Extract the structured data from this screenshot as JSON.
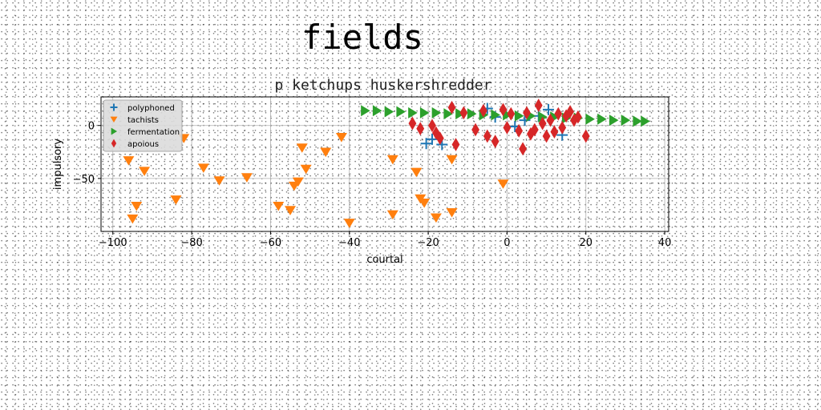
{
  "suptitle": "fields",
  "chart_data": {
    "type": "scatter",
    "title": "p ketchups huskershredder",
    "xlabel": "courtal",
    "ylabel": "impulsory",
    "xlim": [
      -103,
      41
    ],
    "ylim": [
      -100,
      27
    ],
    "xticks": [
      -100,
      -80,
      -60,
      -40,
      -20,
      0,
      20,
      40
    ],
    "yticks": [
      0,
      -50
    ],
    "grid": true,
    "legend_position": "upper-left",
    "series": [
      {
        "name": "polyphoned",
        "marker": "plus",
        "color": "#1f77b4",
        "x": [
          -20.5,
          -19,
          -16.5,
          -5,
          -3,
          2,
          4.5,
          8,
          10.5,
          14
        ],
        "y": [
          -17,
          -13,
          -18,
          16,
          8,
          -1,
          5,
          9,
          15,
          -9
        ]
      },
      {
        "name": "tachists",
        "marker": "triangle-down",
        "color": "#ff7f0e",
        "x": [
          -96,
          -95,
          -94,
          -92,
          -84,
          -82,
          -77,
          -73,
          -66,
          -58,
          -55,
          -54,
          -53,
          -52,
          -51,
          -46,
          -42,
          -40,
          -29,
          -29,
          -23,
          -22,
          -21,
          -18,
          -14,
          -14,
          -1
        ],
        "y": [
          -33,
          -88,
          -76,
          -43,
          -70,
          -12,
          -40,
          -52,
          -49,
          -76,
          -80,
          -57,
          -53,
          -21,
          -41,
          -25,
          -11,
          -92,
          -32,
          -84,
          -44,
          -69,
          -73,
          -87,
          -82,
          -32,
          -55
        ]
      },
      {
        "name": "fermentation",
        "marker": "triangle-right",
        "color": "#2ca02c",
        "x": [
          -36,
          -33,
          -30,
          -27,
          -24,
          -21,
          -18,
          -15,
          -12,
          -9,
          -6,
          -3,
          0,
          3,
          6,
          9,
          12,
          15,
          18,
          21,
          24,
          27,
          30,
          33,
          35
        ],
        "y": [
          14,
          14,
          13,
          13,
          12,
          12,
          12,
          11,
          11,
          11,
          10,
          10,
          10,
          9,
          9,
          8,
          8,
          7,
          7,
          6,
          6,
          5,
          5,
          4,
          4
        ]
      },
      {
        "name": "apoious",
        "marker": "diamond",
        "color": "#d62728",
        "x": [
          -24,
          -22,
          -19,
          -18,
          -17,
          -14,
          -13,
          -11,
          -8,
          -6,
          -5,
          -3,
          -1,
          0,
          1,
          3,
          4,
          5,
          6,
          7,
          8,
          9,
          10,
          11,
          12,
          13,
          14,
          15,
          16,
          17,
          18,
          20
        ],
        "y": [
          2,
          -3,
          0,
          -7,
          -12,
          17,
          -18,
          12,
          -4,
          14,
          -10,
          -15,
          15,
          -2,
          11,
          -5,
          -22,
          12,
          -8,
          -4,
          19,
          2,
          -10,
          5,
          -6,
          11,
          -2,
          9,
          13,
          5,
          8,
          -10
        ]
      }
    ]
  }
}
